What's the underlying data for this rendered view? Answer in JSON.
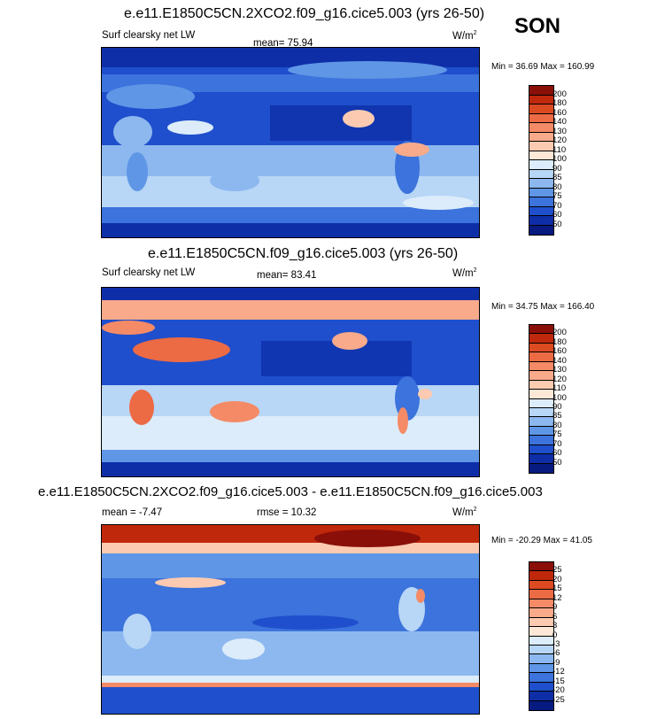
{
  "season": "SON",
  "panels": [
    {
      "title": "e.e11.E1850C5CN.2XCO2.f09_g16.cice5.003 (yrs 26-50)",
      "left_label": "Surf clearsky net LW",
      "mean_label": "mean=  75.94",
      "units": "W/m",
      "units_sup": "2",
      "minmax": "Min = 36.69 Max = 160.99",
      "colorbar": {
        "ticks": [
          "200",
          "180",
          "160",
          "140",
          "130",
          "120",
          "110",
          "100",
          "90",
          "85",
          "80",
          "75",
          "70",
          "60",
          "50"
        ],
        "colors": [
          "#8a0f08",
          "#c0280c",
          "#dc4a22",
          "#ec6a44",
          "#f48a66",
          "#f8aa8a",
          "#fccab0",
          "#fde8d8",
          "#dcecfa",
          "#b8d6f6",
          "#8cb8ef",
          "#5f96e6",
          "#3c73dc",
          "#1f4fcc",
          "#0e2ea8",
          "#061a80"
        ]
      }
    },
    {
      "title": "e.e11.E1850C5CN.f09_g16.cice5.003 (yrs 26-50)",
      "left_label": "Surf clearsky net LW",
      "mean_label": "mean=  83.41",
      "units": "W/m",
      "units_sup": "2",
      "minmax": "Min = 34.75 Max = 166.40",
      "colorbar": {
        "ticks": [
          "200",
          "180",
          "160",
          "140",
          "130",
          "120",
          "110",
          "100",
          "90",
          "85",
          "80",
          "75",
          "70",
          "60",
          "50"
        ],
        "colors": [
          "#8a0f08",
          "#c0280c",
          "#dc4a22",
          "#ec6a44",
          "#f48a66",
          "#f8aa8a",
          "#fccab0",
          "#fde8d8",
          "#dcecfa",
          "#b8d6f6",
          "#8cb8ef",
          "#5f96e6",
          "#3c73dc",
          "#1f4fcc",
          "#0e2ea8",
          "#061a80"
        ]
      }
    },
    {
      "title": "e.e11.E1850C5CN.2XCO2.f09_g16.cice5.003 - e.e11.E1850C5CN.f09_g16.cice5.003",
      "left_label": "mean =  -7.47",
      "mean_label": "rmse =  10.32",
      "units": "W/m",
      "units_sup": "2",
      "minmax": "Min = -20.29 Max = 41.05",
      "colorbar": {
        "ticks": [
          "25",
          "20",
          "15",
          "12",
          "9",
          "6",
          "3",
          "0",
          "-3",
          "-6",
          "-9",
          "-12",
          "-15",
          "-20",
          "-25"
        ],
        "colors": [
          "#8a0f08",
          "#c0280c",
          "#dc4a22",
          "#ec6a44",
          "#f48a66",
          "#f8aa8a",
          "#fccab0",
          "#fde8d8",
          "#dcecfa",
          "#b8d6f6",
          "#8cb8ef",
          "#5f96e6",
          "#3c73dc",
          "#1f4fcc",
          "#0e2ea8",
          "#061a80"
        ]
      }
    }
  ]
}
